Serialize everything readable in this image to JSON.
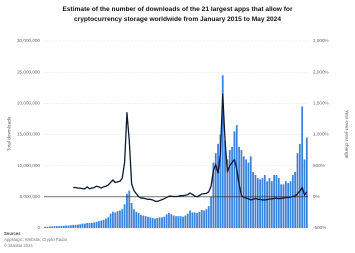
{
  "chart_data": {
    "type": "bar-line",
    "title": [
      "Estimate of the number of downloads of the 21 largest apps that allow for",
      "cryptocurrency storage worldwide from January 2015 to May 2024"
    ],
    "y_label": "Total downloads",
    "y2_label": "Year-over-year change",
    "source": [
      "Sources",
      "AppMagic; Website; Crypto Radar",
      "© Statista 2024"
    ],
    "ylim": [
      0,
      30000000
    ],
    "yticks": [
      0,
      {
        "value": 5000000,
        "label": "5,000,000"
      },
      {
        "value": 10000000,
        "label": "10,000,000"
      },
      {
        "value": 15000000,
        "label": "15,000,000"
      },
      {
        "value": 20000000,
        "label": "20,000,000"
      },
      {
        "value": 25000000,
        "label": "25,000,000"
      },
      {
        "value": 30000000,
        "label": "30,000,000"
      }
    ],
    "y2lim": [
      -500,
      2500
    ],
    "y2ticks": [
      {
        "value": -500,
        "label": "-500%"
      },
      {
        "value": 0,
        "label": "0%"
      },
      {
        "value": 500,
        "label": "500%"
      },
      {
        "value": 1000,
        "label": "1,000%"
      },
      {
        "value": 1500,
        "label": "1,500%"
      },
      {
        "value": 2000,
        "label": "2,000%"
      },
      {
        "value": 2500,
        "label": "2,500%"
      }
    ],
    "grid": true,
    "series": [
      {
        "type": "bar",
        "color": "#3a82dc",
        "values": [
          200000,
          200000,
          250000,
          250000,
          300000,
          300000,
          300000,
          350000,
          350000,
          400000,
          400000,
          450000,
          500000,
          500000,
          550000,
          600000,
          700000,
          700000,
          800000,
          800000,
          800000,
          900000,
          1000000,
          1100000,
          1200000,
          1300000,
          1500000,
          1700000,
          2300000,
          2600000,
          2500000,
          2700000,
          2800000,
          3000000,
          3800000,
          5500000,
          6000000,
          4000000,
          3000000,
          2600000,
          2400000,
          2100000,
          2000000,
          1900000,
          1800000,
          1700000,
          1600000,
          1500000,
          1600000,
          1700000,
          1700000,
          1800000,
          2200000,
          2400000,
          2200000,
          2000000,
          1900000,
          1900000,
          1900000,
          1800000,
          2000000,
          2300000,
          2800000,
          2500000,
          2500000,
          2400000,
          2600000,
          2900000,
          2800000,
          3000000,
          3500000,
          5000000,
          10500000,
          12000000,
          13500000,
          15000000,
          24500000,
          14000000,
          11000000,
          12500000,
          13000000,
          15500000,
          16500000,
          13000000,
          12500000,
          11500000,
          11000000,
          10500000,
          11500000,
          9000000,
          8500000,
          8000000,
          7800000,
          8000000,
          8500000,
          7500000,
          8000000,
          7500000,
          8500000,
          8500000,
          8000000,
          7000000,
          7000000,
          7500000,
          7200000,
          7500000,
          8500000,
          9000000,
          12000000,
          13500000,
          19500000,
          11000000,
          14500000
        ]
      },
      {
        "type": "line",
        "axis": "y2",
        "color": "#0e1b35",
        "values": [
          null,
          null,
          null,
          null,
          null,
          null,
          null,
          null,
          null,
          null,
          null,
          null,
          150,
          150,
          140,
          140,
          130,
          130,
          160,
          130,
          140,
          150,
          170,
          160,
          140,
          160,
          170,
          190,
          230,
          270,
          230,
          240,
          250,
          300,
          550,
          1350,
          900,
          210,
          100,
          50,
          5,
          -20,
          -20,
          -30,
          -40,
          -40,
          -50,
          -70,
          -75,
          -60,
          -45,
          -30,
          -10,
          10,
          10,
          5,
          5,
          10,
          20,
          20,
          25,
          35,
          60,
          40,
          15,
          0,
          20,
          45,
          50,
          55,
          80,
          170,
          420,
          520,
          380,
          700,
          1650,
          900,
          400,
          500,
          550,
          600,
          450,
          200,
          20,
          -5,
          -20,
          -30,
          -50,
          -40,
          -25,
          -40,
          -40,
          -50,
          -50,
          -45,
          -35,
          -35,
          -25,
          -20,
          -30,
          -25,
          -20,
          -10,
          -10,
          -5,
          5,
          15,
          50,
          90,
          150,
          25,
          80
        ]
      }
    ]
  }
}
